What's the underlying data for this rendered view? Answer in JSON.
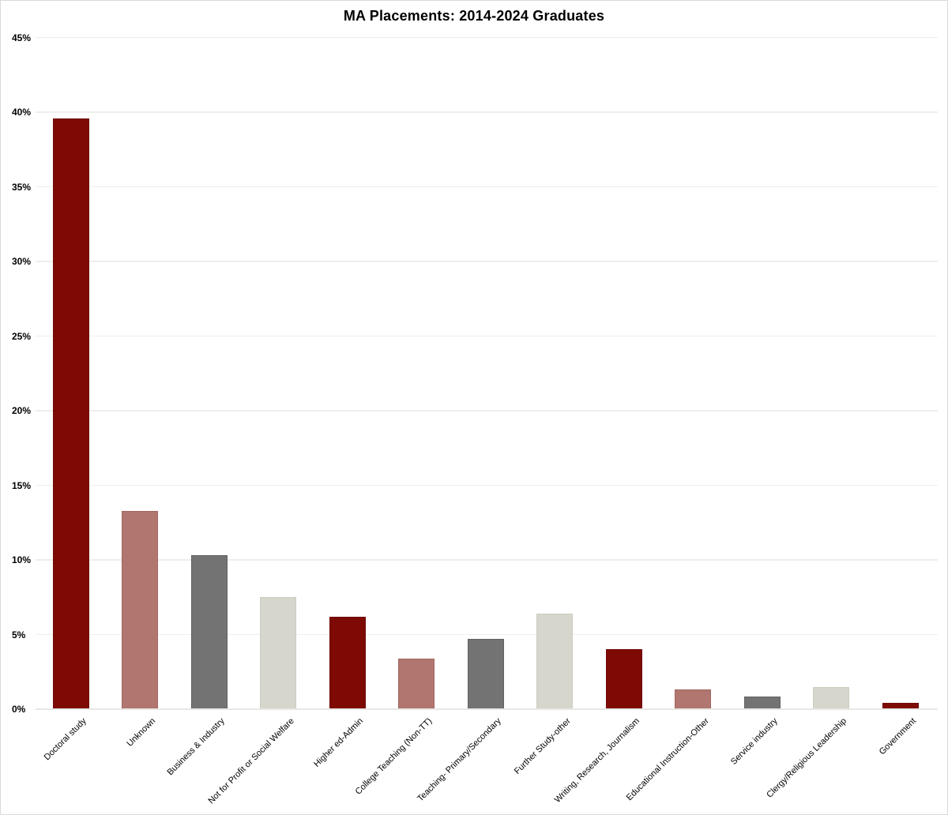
{
  "chart_data": {
    "type": "bar",
    "title": "MA Placements: 2014-2024 Graduates",
    "xlabel": "",
    "ylabel": "",
    "ylim": [
      0,
      45
    ],
    "ytick_step": 5,
    "yticks": [
      "0%",
      "5%",
      "10%",
      "15%",
      "20%",
      "25%",
      "30%",
      "35%",
      "40%",
      "45%"
    ],
    "grid": "horizontal",
    "legend": "none",
    "categories": [
      "Doctoral study",
      "Unknown",
      "Business & Industry",
      "Not for Profit or Social Welfare",
      "Higher ed-Admin",
      "College Teaching (Non-TT)",
      "Teaching- Primary/Secondary",
      "Further Study-other",
      "Writing, Research, Journalism",
      "Educational Instruction-Other",
      "Service industry",
      "Clergy/Religious Leadership",
      "Government"
    ],
    "values": [
      39.6,
      13.3,
      10.3,
      7.5,
      6.2,
      3.4,
      4.7,
      6.4,
      4.0,
      1.3,
      0.85,
      1.5,
      0.4
    ],
    "bar_colors": [
      "dark_red",
      "rose",
      "gray",
      "cream",
      "dark_red",
      "rose",
      "gray",
      "cream",
      "dark_red",
      "rose",
      "gray",
      "cream",
      "dark_red"
    ],
    "palette": {
      "dark_red": "#7d0a04",
      "rose": "#b0766f",
      "gray": "#737373",
      "cream": "#d7d6cd"
    },
    "border_palette": {
      "dark_red": "#6f0903",
      "rose": "#a2665f",
      "gray": "#616161",
      "cream": "#cccbc1"
    }
  }
}
